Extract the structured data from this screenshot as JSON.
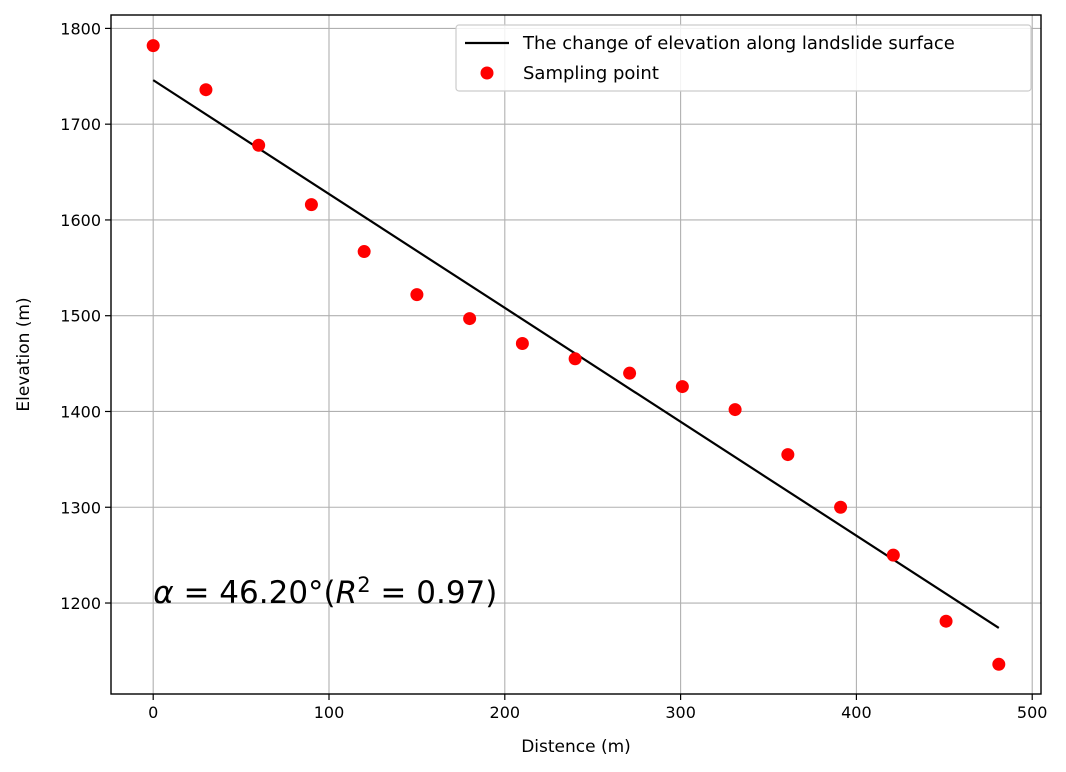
{
  "chart_data": {
    "type": "scatter",
    "xlabel": "Distence (m)",
    "ylabel": "Elevation (m)",
    "xlim": [
      -24,
      505
    ],
    "ylim": [
      1105,
      1814
    ],
    "xticks": [
      0,
      100,
      200,
      300,
      400,
      500
    ],
    "yticks": [
      1200,
      1300,
      1400,
      1500,
      1600,
      1700,
      1800
    ],
    "grid": true,
    "legend_position": "top-right",
    "series": [
      {
        "name": "The change of elevation along landslide surface",
        "kind": "line",
        "color": "#000000",
        "x": [
          0,
          481
        ],
        "y": [
          1746,
          1174
        ]
      },
      {
        "name": "Sampling point",
        "kind": "scatter",
        "color": "#ff0000",
        "x": [
          0,
          30,
          60,
          90,
          120,
          150,
          180,
          210,
          240,
          271,
          301,
          331,
          361,
          391,
          421,
          451,
          481
        ],
        "y": [
          1782,
          1736,
          1678,
          1616,
          1567,
          1522,
          1497,
          1471,
          1455,
          1440,
          1426,
          1402,
          1355,
          1300,
          1250,
          1181,
          1136
        ]
      }
    ],
    "annotation": {
      "alpha_symbol": "α",
      "alpha_eq": " = 46.20°(",
      "r_symbol": "R",
      "r_exp": "2",
      "r_eq": " = 0.97)",
      "x": 0,
      "y": 1200
    }
  }
}
